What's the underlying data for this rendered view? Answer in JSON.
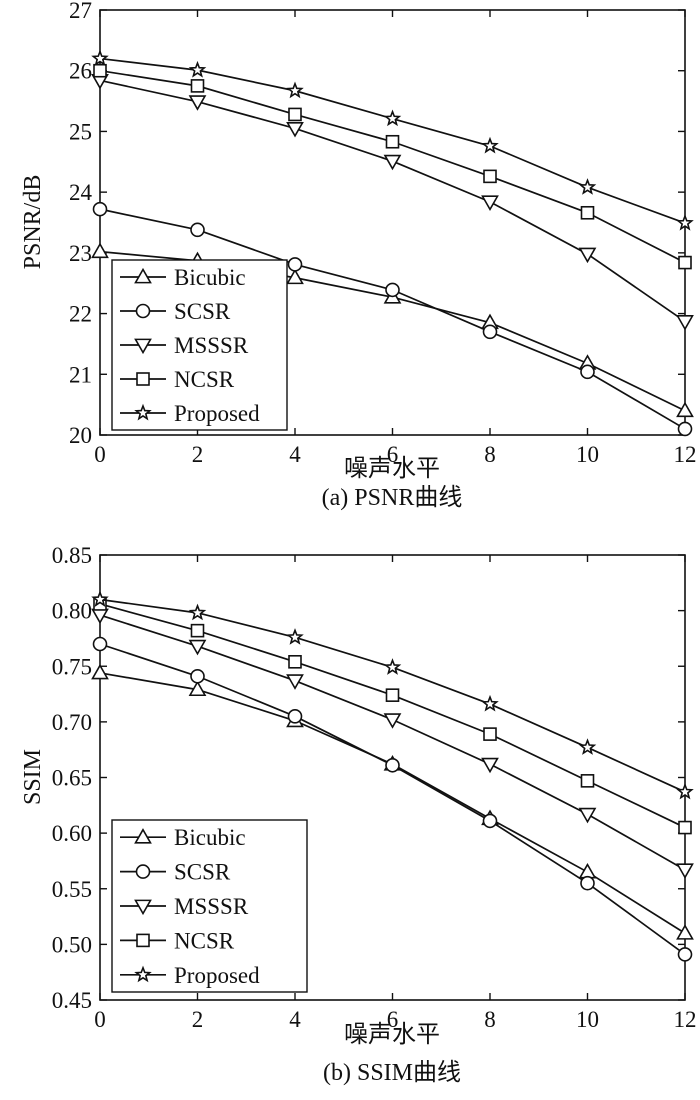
{
  "chart_data": [
    {
      "type": "line",
      "title": "",
      "caption": "(a) PSNR曲线",
      "xlabel": "噪声水平",
      "ylabel": "PSNR/dB",
      "x": [
        0,
        2,
        4,
        6,
        8,
        10,
        12
      ],
      "xlim": [
        0,
        12
      ],
      "ylim": [
        20,
        27
      ],
      "xticks": [
        0,
        2,
        4,
        6,
        8,
        10,
        12
      ],
      "yticks": [
        20,
        21,
        22,
        23,
        24,
        25,
        26,
        27
      ],
      "legend_position": "bottom-left",
      "series": [
        {
          "name": "Bicubic",
          "marker": "triangle-up",
          "values": [
            23.02,
            22.87,
            22.59,
            22.27,
            21.85,
            21.18,
            20.4
          ]
        },
        {
          "name": "SCSR",
          "marker": "circle",
          "values": [
            23.72,
            23.38,
            22.81,
            22.39,
            21.7,
            21.04,
            20.1
          ]
        },
        {
          "name": "MSSSR",
          "marker": "triangle-down",
          "values": [
            25.84,
            25.49,
            25.05,
            24.51,
            23.84,
            22.98,
            21.87
          ]
        },
        {
          "name": "NCSR",
          "marker": "square",
          "values": [
            26.0,
            25.75,
            25.28,
            24.83,
            24.26,
            23.66,
            22.84
          ]
        },
        {
          "name": "Proposed",
          "marker": "star",
          "values": [
            26.2,
            26.01,
            25.67,
            25.21,
            24.76,
            24.08,
            23.49
          ]
        }
      ]
    },
    {
      "type": "line",
      "title": "",
      "caption": "(b) SSIM曲线",
      "xlabel": "噪声水平",
      "ylabel": "SSIM",
      "x": [
        0,
        2,
        4,
        6,
        8,
        10,
        12
      ],
      "xlim": [
        0,
        12
      ],
      "ylim": [
        0.45,
        0.85
      ],
      "xticks": [
        0,
        2,
        4,
        6,
        8,
        10,
        12
      ],
      "yticks": [
        0.45,
        0.5,
        0.55,
        0.6,
        0.65,
        0.7,
        0.75,
        0.8,
        0.85
      ],
      "ytick_labels": [
        "0.45",
        "0.50",
        "0.55",
        "0.60",
        "0.65",
        "0.70",
        "0.75",
        "0.80",
        "0.85"
      ],
      "legend_position": "bottom-left",
      "series": [
        {
          "name": "Bicubic",
          "marker": "triangle-up",
          "values": [
            0.744,
            0.729,
            0.701,
            0.662,
            0.613,
            0.565,
            0.51
          ]
        },
        {
          "name": "SCSR",
          "marker": "circle",
          "values": [
            0.77,
            0.741,
            0.705,
            0.661,
            0.611,
            0.555,
            0.491
          ]
        },
        {
          "name": "MSSSR",
          "marker": "triangle-down",
          "values": [
            0.796,
            0.768,
            0.737,
            0.702,
            0.662,
            0.617,
            0.567
          ]
        },
        {
          "name": "NCSR",
          "marker": "square",
          "values": [
            0.806,
            0.782,
            0.754,
            0.724,
            0.689,
            0.647,
            0.605
          ]
        },
        {
          "name": "Proposed",
          "marker": "star",
          "values": [
            0.81,
            0.798,
            0.776,
            0.749,
            0.716,
            0.677,
            0.637
          ]
        }
      ]
    }
  ]
}
